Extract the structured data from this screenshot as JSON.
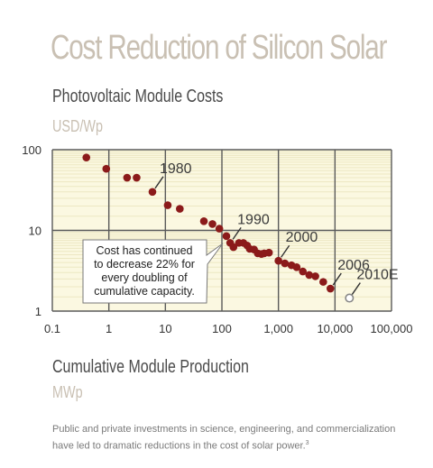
{
  "header": {
    "title": "Cost Reduction of Silicon Solar",
    "subtitle": "Photovoltaic Module Costs",
    "y_unit": "USD/Wp"
  },
  "footer": {
    "x_label": "Cumulative Module Production",
    "x_unit": "MWp",
    "note": "Public and private investments in science, engineering, and commercialization have led to dramatic reductions in the cost of solar power.",
    "note_ref": "3"
  },
  "colors": {
    "plot_bg": "#fbf8e1",
    "minor_grid": "#ece7c2",
    "major_grid": "#5a5a5a",
    "point": "#8b1a1a",
    "title": "#c9c0b3",
    "projection": "#888888"
  },
  "chart_data": {
    "type": "scatter",
    "x_scale": "log",
    "y_scale": "log",
    "xlim": [
      0.1,
      100000
    ],
    "ylim": [
      1,
      100
    ],
    "x_ticks": [
      "0.1",
      "1",
      "10",
      "100",
      "1,000",
      "10,000",
      "100,000"
    ],
    "y_ticks": [
      "1",
      "10",
      "100"
    ],
    "grid": true,
    "points": [
      [
        0.4,
        80
      ],
      [
        0.9,
        58
      ],
      [
        2.1,
        45
      ],
      [
        3.1,
        45
      ],
      [
        5.9,
        30
      ],
      [
        11,
        20.5
      ],
      [
        18,
        18.5
      ],
      [
        48,
        13
      ],
      [
        68,
        12
      ],
      [
        90,
        10.5
      ],
      [
        120,
        8.5
      ],
      [
        140,
        7
      ],
      [
        160,
        6.2
      ],
      [
        200,
        7
      ],
      [
        240,
        7
      ],
      [
        280,
        6.5
      ],
      [
        310,
        5.9
      ],
      [
        370,
        5.8
      ],
      [
        430,
        5.2
      ],
      [
        500,
        5.1
      ],
      [
        560,
        5.2
      ],
      [
        680,
        5.3
      ],
      [
        1000,
        4.2
      ],
      [
        1300,
        3.9
      ],
      [
        1700,
        3.7
      ],
      [
        2100,
        3.5
      ],
      [
        2700,
        3.1
      ],
      [
        3500,
        2.8
      ],
      [
        4500,
        2.7
      ],
      [
        6200,
        2.3
      ],
      [
        8300,
        1.9
      ]
    ],
    "projection": {
      "x": 18000,
      "y": 1.45,
      "label": "2010E"
    },
    "annotations": [
      {
        "label": "1980",
        "x": 5.9,
        "y": 30
      },
      {
        "label": "1990",
        "x": 140,
        "y": 7
      },
      {
        "label": "2000",
        "x": 1000,
        "y": 4.2
      },
      {
        "label": "2006",
        "x": 8300,
        "y": 1.9
      }
    ],
    "callout": [
      "Cost has continued",
      "to decrease 22% for",
      "every doubling of",
      "cumulative capacity."
    ]
  }
}
